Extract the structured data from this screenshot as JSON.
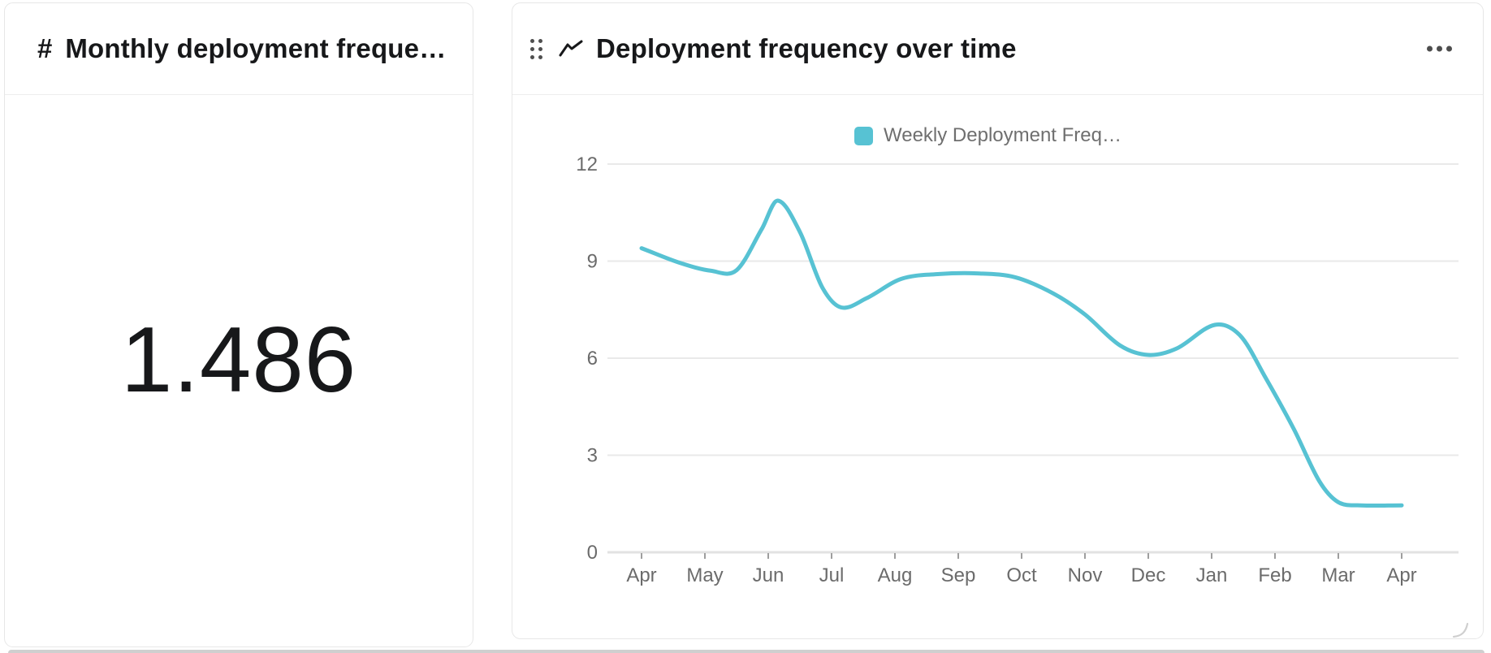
{
  "colors": {
    "accent_teal": "#57c2d3",
    "card_border": "#e7e7e7",
    "divider": "#ededed",
    "title_text": "#17181a",
    "muted_text": "#6b6b6b",
    "gridline": "#e9e9e9",
    "axis_line": "#e2e2e2",
    "tick_mark": "#9e9e9e",
    "icon_gray": "#4f4f4f"
  },
  "stat_card": {
    "icon_glyph": "#",
    "title": "Monthly deployment frequen…",
    "value": "1.486"
  },
  "chart_card": {
    "title": "Deployment frequency over time",
    "more_options_icon": "ellipsis-horizontal",
    "drag_handle_icon": "six-dots",
    "resize_grip_icon": "corner-resize"
  },
  "chart_data": {
    "type": "line",
    "title": "Deployment frequency over time",
    "legend_position": "top-center",
    "grid": true,
    "x_labels": [
      "Apr",
      "May",
      "Jun",
      "Jul",
      "Aug",
      "Sep",
      "Oct",
      "Nov",
      "Dec",
      "Jan",
      "Feb",
      "Mar",
      "Apr"
    ],
    "y_ticks": [
      0,
      3,
      6,
      9,
      12
    ],
    "ylim": [
      0,
      12
    ],
    "series": [
      {
        "name": "Weekly Deployment Freq…",
        "color": "#57c2d3",
        "monthly_values": [
          9.4,
          8.7,
          10.85,
          7.55,
          8.45,
          8.6,
          8.45,
          7.45,
          6.1,
          7.05,
          4.9,
          1.45,
          1.45
        ],
        "curve_points": [
          [
            0,
            9.4
          ],
          [
            0.6,
            8.95
          ],
          [
            1.1,
            8.7
          ],
          [
            1.5,
            8.72
          ],
          [
            1.9,
            10.0
          ],
          [
            2.15,
            10.87
          ],
          [
            2.5,
            9.9
          ],
          [
            2.85,
            8.2
          ],
          [
            3.15,
            7.57
          ],
          [
            3.55,
            7.85
          ],
          [
            4.1,
            8.45
          ],
          [
            4.7,
            8.6
          ],
          [
            5.3,
            8.62
          ],
          [
            5.9,
            8.5
          ],
          [
            6.5,
            8.0
          ],
          [
            7.0,
            7.35
          ],
          [
            7.55,
            6.4
          ],
          [
            8.0,
            6.1
          ],
          [
            8.45,
            6.3
          ],
          [
            9.05,
            7.03
          ],
          [
            9.45,
            6.7
          ],
          [
            9.85,
            5.4
          ],
          [
            10.3,
            3.8
          ],
          [
            10.7,
            2.2
          ],
          [
            11.0,
            1.55
          ],
          [
            11.35,
            1.45
          ],
          [
            12,
            1.45
          ]
        ]
      }
    ]
  }
}
